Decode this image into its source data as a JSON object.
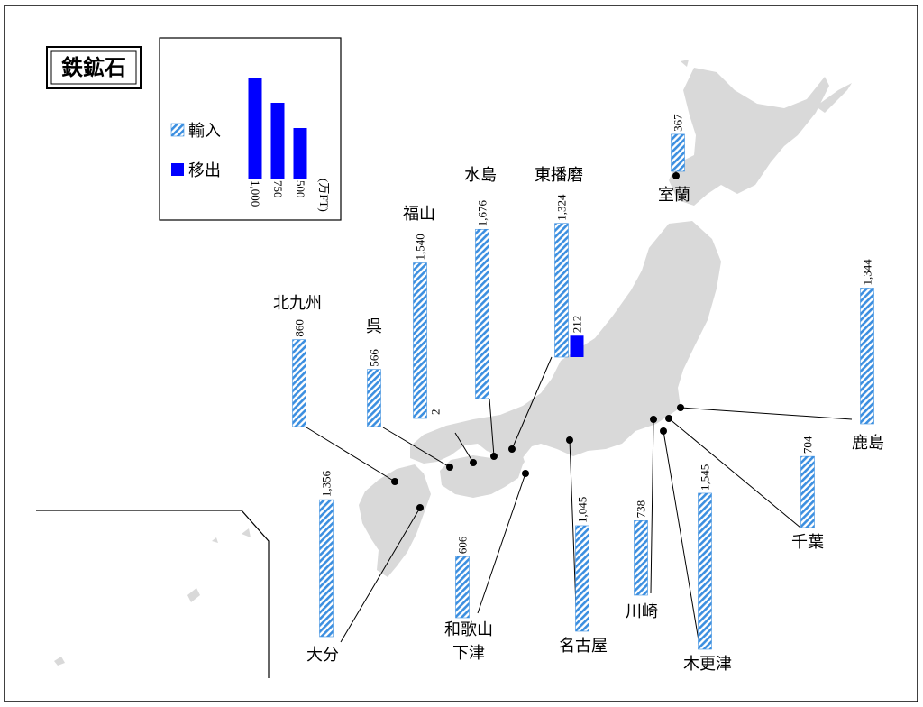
{
  "title": "鉄鉱石",
  "unit": "(万FT)",
  "legend": {
    "import_label": "輸入",
    "export_label": "移出",
    "scale_ticks": [
      "1,000",
      "750",
      "500"
    ],
    "scale_values": [
      1000,
      750,
      500
    ]
  },
  "colors": {
    "import_stripe": "#3c8fe0",
    "export": "#0000ff",
    "land": "#d9d9d9",
    "border": "#000000"
  },
  "chart_data": {
    "type": "bar",
    "title": "鉄鉱石",
    "unit": "万FT",
    "series": [
      {
        "name": "輸入"
      },
      {
        "name": "移出"
      }
    ],
    "ports": [
      {
        "name": "室蘭",
        "import": 367
      },
      {
        "name": "鹿島",
        "import": 1344
      },
      {
        "name": "千葉",
        "import": 704
      },
      {
        "name": "木更津",
        "import": 1545
      },
      {
        "name": "川崎",
        "import": 738
      },
      {
        "name": "名古屋",
        "import": 1045
      },
      {
        "name": "和歌山 下津",
        "import": 606
      },
      {
        "name": "東播磨",
        "import": 1324,
        "export": 212
      },
      {
        "name": "水島",
        "import": 1676
      },
      {
        "name": "福山",
        "import": 1540,
        "export": 2
      },
      {
        "name": "呉",
        "import": 566
      },
      {
        "name": "北九州",
        "import": 860
      },
      {
        "name": "大分",
        "import": 1356
      }
    ]
  },
  "ports": [
    {
      "id": "muroran",
      "name": "室蘭",
      "import_label": "367",
      "import": 367
    },
    {
      "id": "kashima",
      "name": "鹿島",
      "import_label": "1,344",
      "import": 1344
    },
    {
      "id": "chiba",
      "name": "千葉",
      "import_label": "704",
      "import": 704
    },
    {
      "id": "kisarazu",
      "name": "木更津",
      "import_label": "1,545",
      "import": 1545
    },
    {
      "id": "kawasaki",
      "name": "川崎",
      "import_label": "738",
      "import": 738
    },
    {
      "id": "nagoya",
      "name": "名古屋",
      "import_label": "1,045",
      "import": 1045
    },
    {
      "id": "wakayama",
      "name": "和歌山",
      "name2": "下津",
      "import_label": "606",
      "import": 606
    },
    {
      "id": "higashiharima",
      "name": "東播磨",
      "import_label": "1,324",
      "import": 1324,
      "export_label": "212",
      "export": 212
    },
    {
      "id": "mizushima",
      "name": "水島",
      "import_label": "1,676",
      "import": 1676
    },
    {
      "id": "fukuyama",
      "name": "福山",
      "import_label": "1,540",
      "import": 1540,
      "export_label": "2",
      "export": 2
    },
    {
      "id": "kure",
      "name": "呉",
      "import_label": "566",
      "import": 566
    },
    {
      "id": "kitakyushu",
      "name": "北九州",
      "import_label": "860",
      "import": 860
    },
    {
      "id": "oita",
      "name": "大分",
      "import_label": "1,356",
      "import": 1356
    }
  ]
}
